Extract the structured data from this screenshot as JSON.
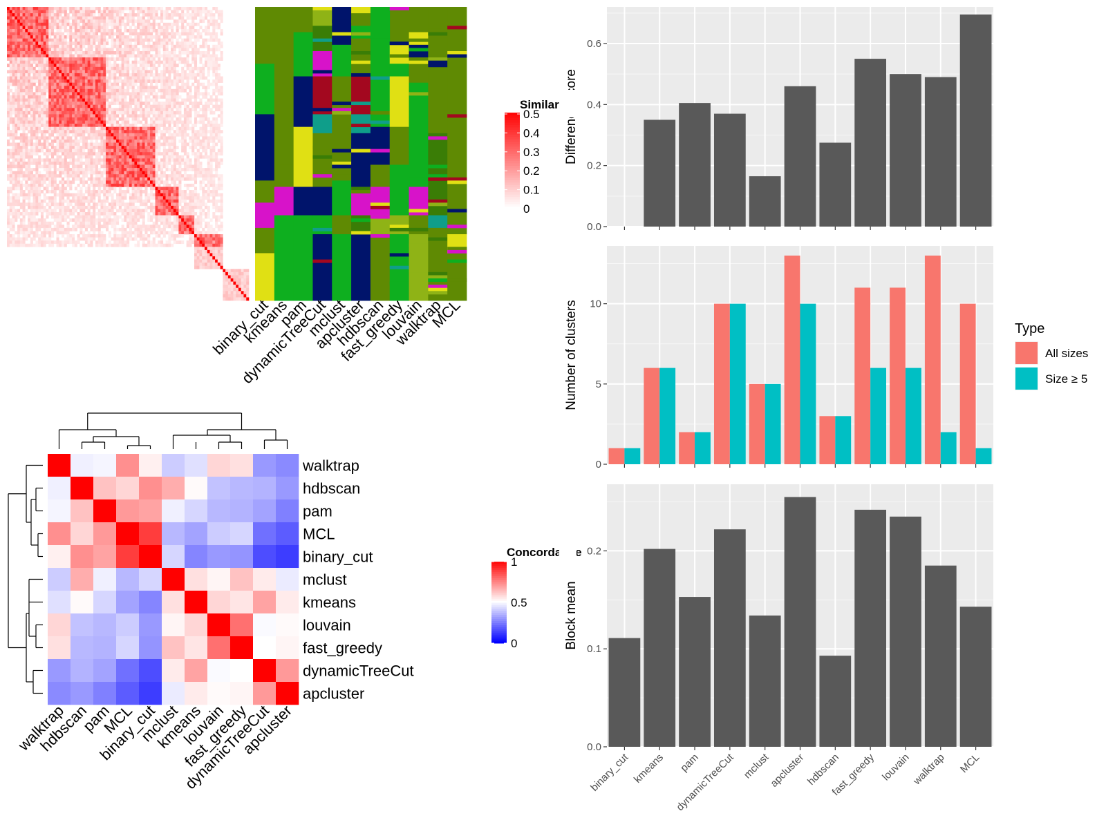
{
  "methods": [
    "binary_cut",
    "kmeans",
    "pam",
    "dynamicTreeCut",
    "mclust",
    "apcluster",
    "hdbscan",
    "fast_greedy",
    "louvain",
    "walktrap",
    "MCL"
  ],
  "similarity_heatmap": {
    "legend_title": "Similarity",
    "legend_ticks": [
      "0",
      "0.1",
      "0.2",
      "0.3",
      "0.4",
      "0.5"
    ],
    "legend_range": [
      0,
      0.5
    ],
    "colors": {
      "low": "#ffffff",
      "high": "#ff0000"
    },
    "n_terms": 93,
    "blocks": [
      [
        0,
        16
      ],
      [
        16,
        38
      ],
      [
        38,
        57
      ],
      [
        57,
        66
      ],
      [
        66,
        72
      ],
      [
        72,
        83
      ],
      [
        83,
        93
      ]
    ]
  },
  "cluster_palette": [
    "#5f8a03",
    "#00146b",
    "#0eaf1f",
    "#8fb316",
    "#e0e014",
    "#a3081f",
    "#d713c9",
    "#0f9e8a",
    "#3a7d06"
  ],
  "concordance_heatmap": {
    "legend_title": "Concordance",
    "legend_ticks": [
      "0",
      "0.5",
      "1"
    ],
    "legend_range": [
      0,
      1
    ],
    "colors": {
      "low": "#0000ff",
      "mid": "#ffffff",
      "high": "#ff0000"
    },
    "order": [
      "walktrap",
      "hdbscan",
      "pam",
      "MCL",
      "binary_cut",
      "mclust",
      "kmeans",
      "louvain",
      "fast_greedy",
      "dynamicTreeCut",
      "apcluster"
    ],
    "values": [
      [
        1.0,
        0.47,
        0.48,
        0.72,
        0.53,
        0.4,
        0.44,
        0.58,
        0.56,
        0.3,
        0.27
      ],
      [
        0.47,
        1.0,
        0.62,
        0.58,
        0.72,
        0.66,
        0.51,
        0.38,
        0.36,
        0.35,
        0.3
      ],
      [
        0.48,
        0.62,
        1.0,
        0.7,
        0.68,
        0.47,
        0.42,
        0.36,
        0.35,
        0.32,
        0.25
      ],
      [
        0.72,
        0.58,
        0.7,
        1.0,
        0.88,
        0.36,
        0.32,
        0.4,
        0.42,
        0.22,
        0.18
      ],
      [
        0.53,
        0.72,
        0.68,
        0.88,
        1.0,
        0.42,
        0.26,
        0.3,
        0.29,
        0.15,
        0.12
      ],
      [
        0.4,
        0.66,
        0.47,
        0.36,
        0.42,
        1.0,
        0.56,
        0.52,
        0.62,
        0.54,
        0.46
      ],
      [
        0.44,
        0.51,
        0.42,
        0.32,
        0.26,
        0.56,
        1.0,
        0.58,
        0.55,
        0.68,
        0.54
      ],
      [
        0.58,
        0.38,
        0.36,
        0.4,
        0.3,
        0.52,
        0.58,
        1.0,
        0.78,
        0.49,
        0.51
      ],
      [
        0.56,
        0.36,
        0.35,
        0.42,
        0.29,
        0.62,
        0.55,
        0.78,
        1.0,
        0.5,
        0.52
      ],
      [
        0.3,
        0.35,
        0.32,
        0.22,
        0.15,
        0.54,
        0.68,
        0.49,
        0.5,
        1.0,
        0.7
      ],
      [
        0.27,
        0.3,
        0.25,
        0.18,
        0.12,
        0.46,
        0.54,
        0.51,
        0.52,
        0.7,
        1.0
      ]
    ]
  },
  "chart_data": [
    {
      "type": "bar",
      "ylabel": "Difference score",
      "categories": [
        "binary_cut",
        "kmeans",
        "pam",
        "dynamicTreeCut",
        "mclust",
        "apcluster",
        "hdbscan",
        "fast_greedy",
        "louvain",
        "walktrap",
        "MCL"
      ],
      "values": [
        0.0,
        0.35,
        0.405,
        0.37,
        0.165,
        0.46,
        0.275,
        0.55,
        0.5,
        0.49,
        0.695
      ],
      "ylim": [
        0,
        0.72
      ],
      "yticks": [
        0.0,
        0.2,
        0.4,
        0.6
      ],
      "ytick_labels": [
        "0.0",
        "0.2",
        "0.4",
        "0.6"
      ],
      "grid": true
    },
    {
      "type": "bar",
      "ylabel": "Number of clusters",
      "categories": [
        "binary_cut",
        "kmeans",
        "pam",
        "dynamicTreeCut",
        "mclust",
        "apcluster",
        "hdbscan",
        "fast_greedy",
        "louvain",
        "walktrap",
        "MCL"
      ],
      "series": [
        {
          "name": "All sizes",
          "color": "#f8766d",
          "values": [
            1,
            6,
            2,
            10,
            5,
            13,
            3,
            11,
            11,
            13,
            10
          ]
        },
        {
          "name": "Size ≥ 5",
          "color": "#00bfc4",
          "values": [
            1,
            6,
            2,
            10,
            5,
            10,
            3,
            6,
            6,
            2,
            1
          ]
        }
      ],
      "legend_title": "Type",
      "legend_position": "right",
      "ylim": [
        0,
        13.6
      ],
      "yticks": [
        0,
        5,
        10
      ],
      "ytick_labels": [
        "0",
        "5",
        "10"
      ],
      "grid": true
    },
    {
      "type": "bar",
      "ylabel": "Block mean",
      "categories": [
        "binary_cut",
        "kmeans",
        "pam",
        "dynamicTreeCut",
        "mclust",
        "apcluster",
        "hdbscan",
        "fast_greedy",
        "louvain",
        "walktrap",
        "MCL"
      ],
      "values": [
        0.111,
        0.202,
        0.153,
        0.222,
        0.134,
        0.255,
        0.093,
        0.242,
        0.235,
        0.185,
        0.143
      ],
      "ylim": [
        0,
        0.268
      ],
      "yticks": [
        0.0,
        0.1,
        0.2
      ],
      "ytick_labels": [
        "0.0",
        "0.1",
        "0.2"
      ],
      "grid": true
    }
  ]
}
